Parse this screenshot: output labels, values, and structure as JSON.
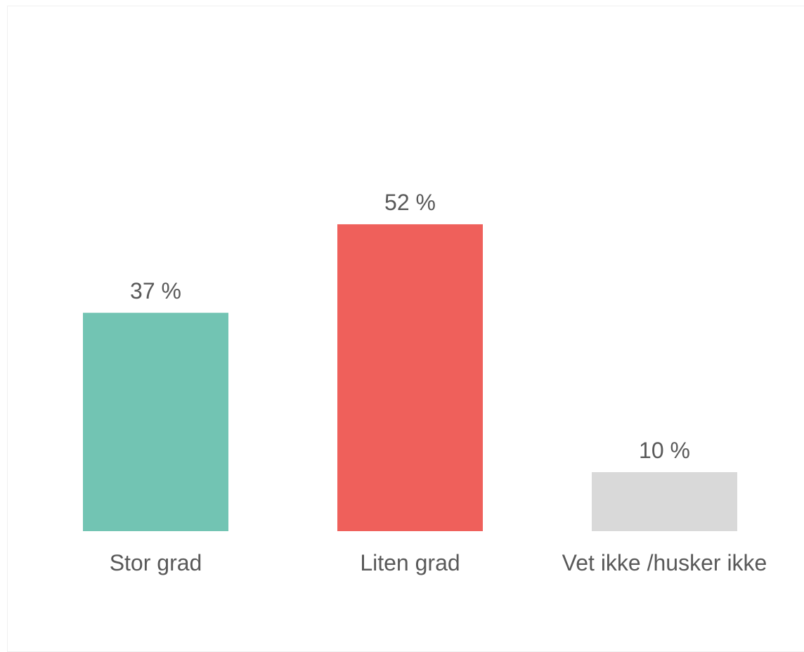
{
  "chart_data": {
    "type": "bar",
    "categories": [
      "Stor grad",
      "Liten grad",
      "Vet ikke /husker ikke"
    ],
    "values": [
      37,
      52,
      10
    ],
    "value_labels": [
      "37 %",
      "52 %",
      "10 %"
    ],
    "colors": [
      "#72c4b3",
      "#ef605b",
      "#d9d9d9"
    ],
    "title": "",
    "xlabel": "",
    "ylabel": "",
    "ylim": [
      0,
      100
    ],
    "grid": false,
    "legend": "none"
  }
}
